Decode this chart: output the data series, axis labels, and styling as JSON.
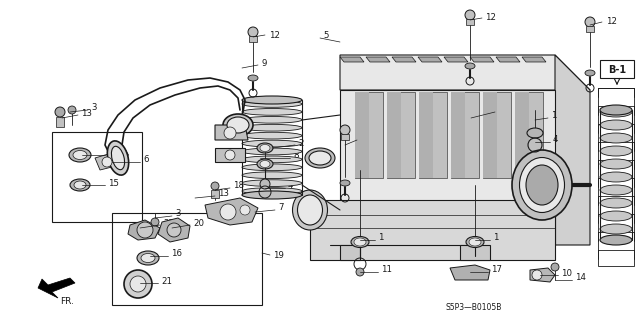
{
  "bg_color": "#ffffff",
  "fig_width": 6.4,
  "fig_height": 3.19,
  "diagram_ref": "S5P3—B0105B",
  "section_label": "B-1",
  "line_color": "#1a1a1a",
  "gray_fill": "#c8c8c8",
  "dark_fill": "#888888",
  "light_fill": "#e8e8e8"
}
